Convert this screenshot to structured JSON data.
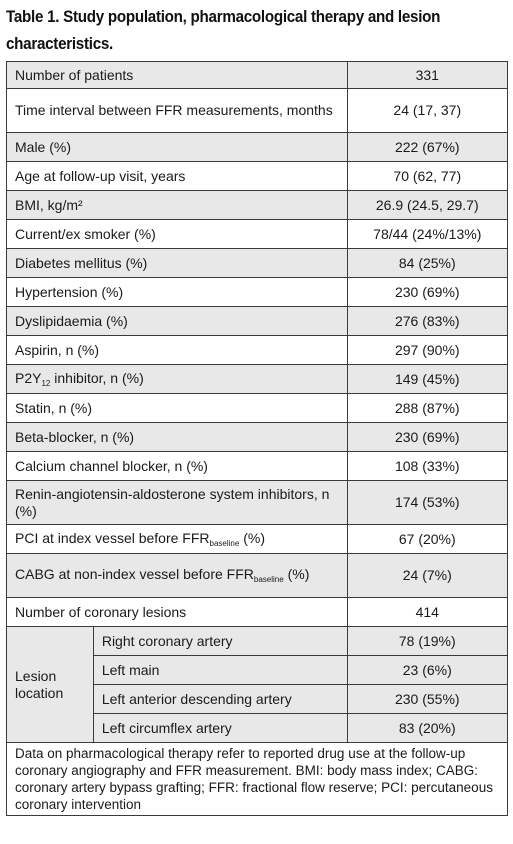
{
  "title": "Table 1. Study population, pharmacological therapy and lesion characteristics.",
  "rows": [
    {
      "label": "Number of patients",
      "value": "331"
    },
    {
      "label": "Time interval between FFR measurements, months",
      "value": "24 (17, 37)"
    },
    {
      "label": "Male (%)",
      "value": "222 (67%)"
    },
    {
      "label": "Age at follow-up visit, years",
      "value": "70 (62, 77)"
    },
    {
      "label": "BMI, kg/m²",
      "value": "26.9 (24.5, 29.7)"
    },
    {
      "label": "Current/ex smoker (%)",
      "value": "78/44 (24%/13%)"
    },
    {
      "label": "Diabetes mellitus (%)",
      "value": "84 (25%)"
    },
    {
      "label": "Hypertension (%)",
      "value": "230 (69%)"
    },
    {
      "label": "Dyslipidaemia (%)",
      "value": "276 (83%)"
    },
    {
      "label": "Aspirin, n (%)",
      "value": "297 (90%)"
    },
    {
      "label_pre": "P2Y",
      "label_sub": "12",
      "label_post": " inhibitor, n (%)",
      "value": "149 (45%)"
    },
    {
      "label": "Statin, n (%)",
      "value": "288 (87%)"
    },
    {
      "label": "Beta-blocker, n (%)",
      "value": "230 (69%)"
    },
    {
      "label": "Calcium channel blocker, n (%)",
      "value": "108 (33%)"
    },
    {
      "label": "Renin-angiotensin-aldosterone system inhibitors, n (%)",
      "value": "174 (53%)"
    },
    {
      "label_pre": "PCI at index vessel before FFR",
      "label_sub": "baseline",
      "label_post": " (%)",
      "value": "67 (20%)"
    },
    {
      "label_pre": "CABG at non-index vessel before FFR",
      "label_sub": "baseline",
      "label_post": " (%)",
      "value": "24 (7%)"
    },
    {
      "label": "Number of coronary lesions",
      "value": "414"
    }
  ],
  "lesion_location": {
    "label": "Lesion location",
    "items": [
      {
        "label": "Right coronary artery",
        "value": "78 (19%)"
      },
      {
        "label": "Left main",
        "value": "23 (6%)"
      },
      {
        "label": "Left anterior descending artery",
        "value": "230 (55%)"
      },
      {
        "label": "Left circumflex artery",
        "value": "83 (20%)"
      }
    ]
  },
  "footnote": "Data on pharmacological therapy refer to reported drug use at the follow-up coronary angiography and FFR measurement. BMI: body mass index; CABG: coronary artery bypass grafting; FFR: fractional flow reserve; PCI: percutaneous coronary intervention"
}
